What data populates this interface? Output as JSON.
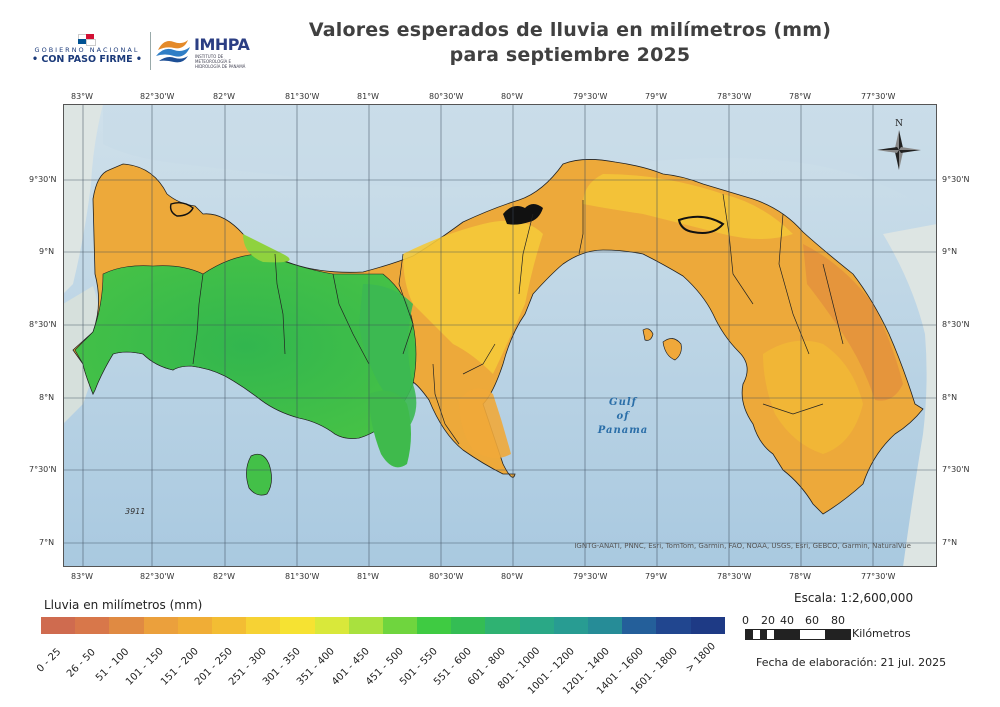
{
  "title": {
    "line1": "Valores esperados de lluvia en milímetros (mm)",
    "line2": "para septiembre 2025"
  },
  "logos": {
    "gobierno_line1": "GOBIERNO NACIONAL",
    "gobierno_line2": "• CON PASO FIRME •",
    "imhpa_name": "IMHPA",
    "imhpa_sub": "INSTITUTO DE METEOROLOGÍA E HIDROLOGÍA DE PANAMÁ"
  },
  "map": {
    "longitude_labels": [
      "83°W",
      "82°30'W",
      "82°W",
      "81°30'W",
      "81°W",
      "80°30'W",
      "80°W",
      "79°30'W",
      "79°W",
      "78°30'W",
      "78°W",
      "77°30'W"
    ],
    "latitude_labels": [
      "9°30'N",
      "9°N",
      "8°30'N",
      "8°N",
      "7°30'N",
      "7°N"
    ],
    "north_arrow_label": "N",
    "sea_label": [
      "Gulf",
      "of",
      "Panama"
    ],
    "ocean_id_label": "3911",
    "attribution": "IGNTG-ANATI, PNNC, Esri, TomTom, Garmin, FAO, NOAA, USGS, Esri, GEBCO, Garmin, NaturalVue",
    "colors": {
      "sea": "#b8d3e6",
      "land_outside": "#dde5e3",
      "rain_orange": "#eda93a",
      "rain_amber": "#f2c23a",
      "rain_yellow": "#f1dc35",
      "rain_green": "#3fbe47",
      "rain_light_green": "#8ad43c",
      "grid": "#3b4a5a"
    }
  },
  "legend": {
    "title": "Lluvia en milímetros (mm)",
    "items": [
      {
        "label": "0 - 25",
        "color": "#cf6b4f"
      },
      {
        "label": "26 - 50",
        "color": "#d8774a"
      },
      {
        "label": "51 - 100",
        "color": "#e08a42"
      },
      {
        "label": "101 - 150",
        "color": "#eba03c"
      },
      {
        "label": "151 - 200",
        "color": "#f0ad36"
      },
      {
        "label": "201 - 250",
        "color": "#f3bd33"
      },
      {
        "label": "251 - 300",
        "color": "#f6d234"
      },
      {
        "label": "301 - 350",
        "color": "#f6e232"
      },
      {
        "label": "351 - 400",
        "color": "#d9e83a"
      },
      {
        "label": "401 - 450",
        "color": "#a9e13e"
      },
      {
        "label": "451 - 500",
        "color": "#6fd53e"
      },
      {
        "label": "501 - 550",
        "color": "#3fcb42"
      },
      {
        "label": "551 - 600",
        "color": "#34bd54"
      },
      {
        "label": "601 - 800",
        "color": "#2fb272"
      },
      {
        "label": "801 - 1000",
        "color": "#2aa886"
      },
      {
        "label": "1001 - 1200",
        "color": "#289c92"
      },
      {
        "label": "1201 - 1400",
        "color": "#268c97"
      },
      {
        "label": "1401 - 1600",
        "color": "#245f9a"
      },
      {
        "label": "1601 - 1800",
        "color": "#21468f"
      },
      {
        "label": "> 1800",
        "color": "#1e3a85"
      }
    ]
  },
  "scale": {
    "text": "Escala: 1:2,600,000",
    "ticks": [
      "0",
      "20",
      "40",
      "60",
      "80"
    ],
    "unit": "Kilómetros"
  },
  "fecha": "Fecha de elaboración: 21 jul. 2025"
}
